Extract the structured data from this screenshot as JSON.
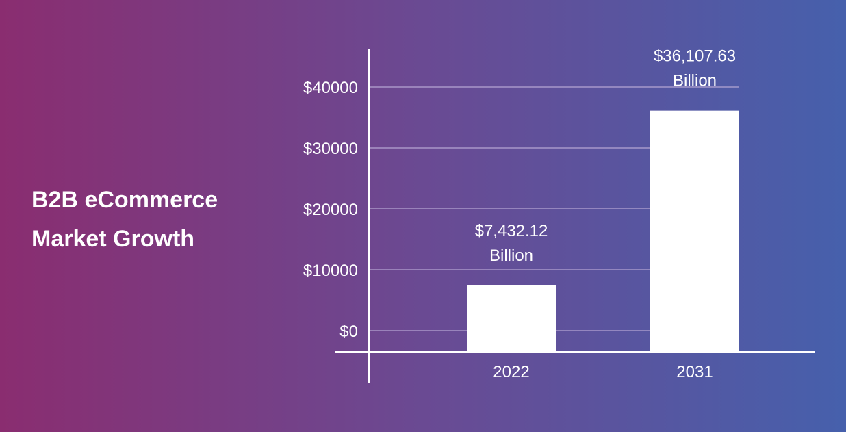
{
  "title_lines": [
    "B2B eCommerce",
    "Market Growth"
  ],
  "chart_data": {
    "type": "bar",
    "title": "B2B eCommerce Market Growth",
    "categories": [
      "2022",
      "2031"
    ],
    "values": [
      7432.12,
      36107.63
    ],
    "data_labels": [
      [
        "$7,432.12",
        "Billion"
      ],
      [
        "$36,107.63",
        "Billion"
      ]
    ],
    "yticks": [
      0,
      10000,
      20000,
      30000,
      40000
    ],
    "ytick_labels": [
      "$0",
      "$10000",
      "$20000",
      "$30000",
      "$40000"
    ],
    "ylim": [
      0,
      40000
    ],
    "grid": true,
    "xlabel": "",
    "ylabel": "",
    "colors": {
      "bar": "#ffffff",
      "grid": "#b9a9d6",
      "background_left": "#8a2d70",
      "background_right": "#4660ac"
    }
  }
}
